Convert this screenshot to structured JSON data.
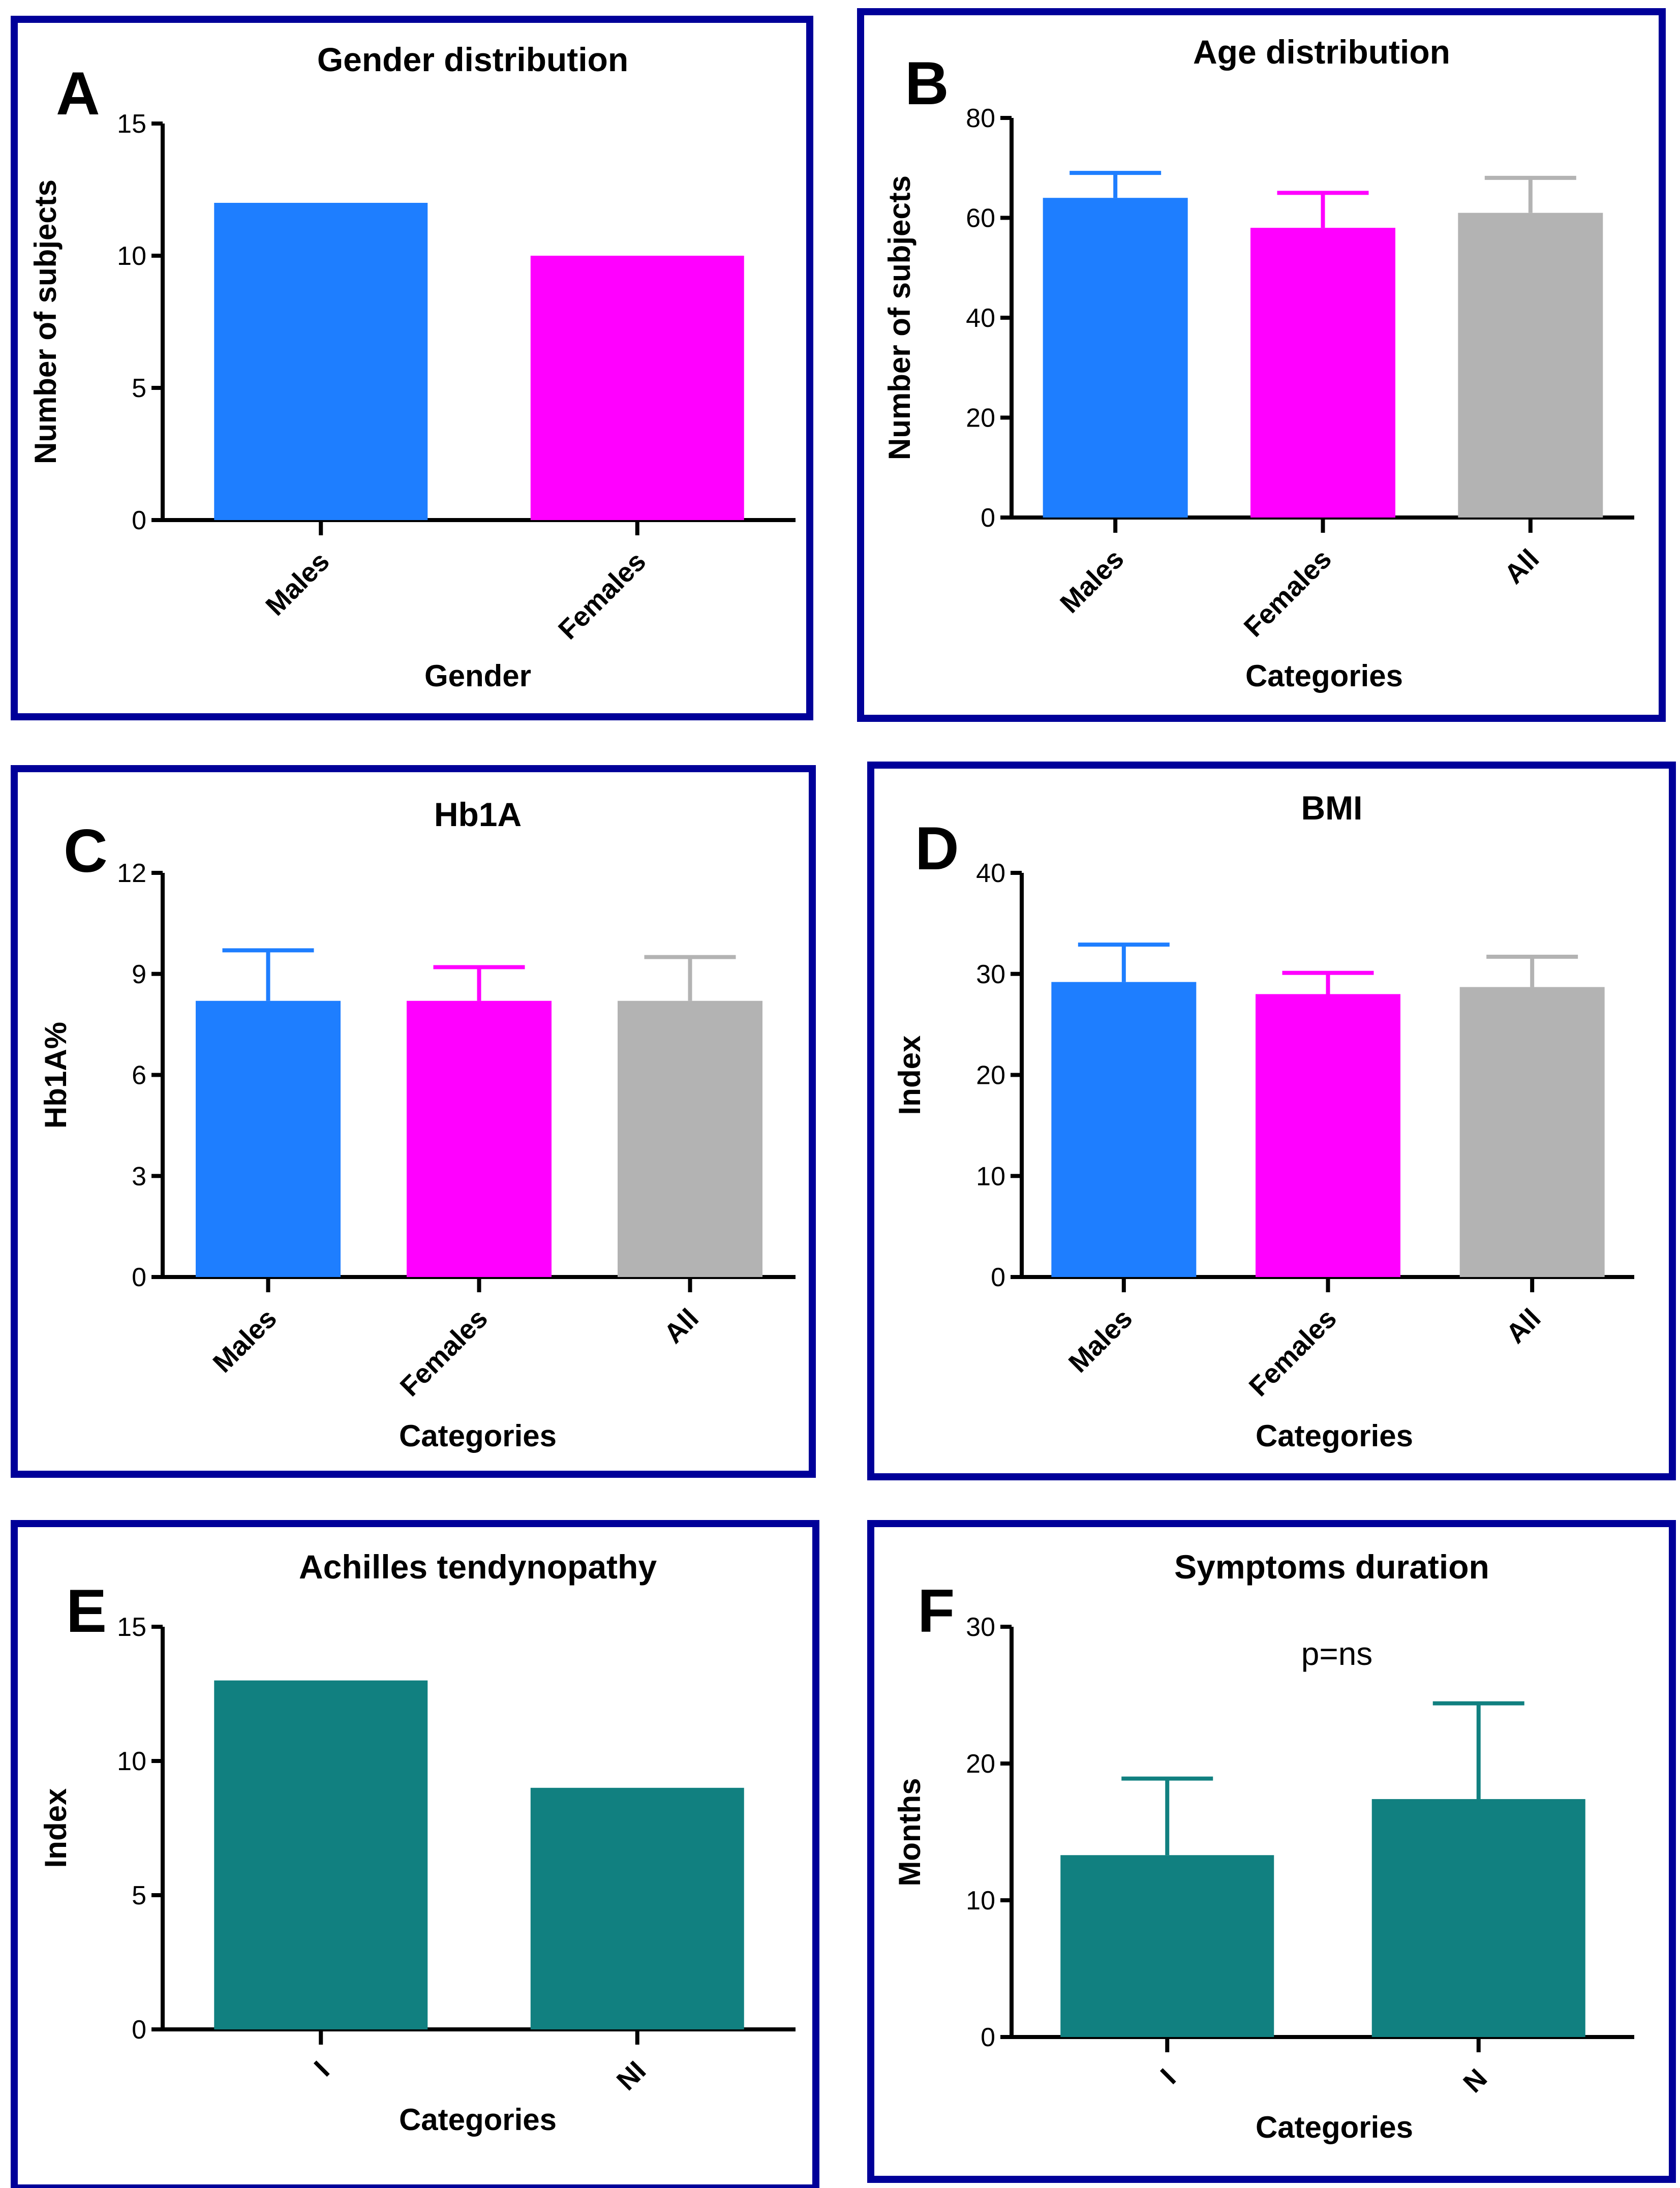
{
  "panels": [
    {
      "letter": "A",
      "title": "Gender distribution",
      "xlabel": "Gender",
      "ylabel": "Number of subjects",
      "yticks": [
        "0",
        "5",
        "10",
        "15"
      ],
      "ylim": [
        0,
        15
      ],
      "categories": [
        "Males",
        "Females"
      ],
      "values": [
        12,
        10
      ],
      "errors": null,
      "bar_colors": [
        "#1E7EFF",
        "#FF00FF"
      ]
    },
    {
      "letter": "B",
      "title": "Age distribution",
      "xlabel": "Categories",
      "ylabel": "Number of subjects",
      "yticks": [
        "0",
        "20",
        "40",
        "60",
        "80"
      ],
      "ylim": [
        0,
        80
      ],
      "categories": [
        "Males",
        "Females",
        "All"
      ],
      "values": [
        64,
        58,
        61
      ],
      "errors": [
        5,
        7,
        7
      ],
      "bar_colors": [
        "#1E7EFF",
        "#FF00FF",
        "#B3B3B3"
      ]
    },
    {
      "letter": "C",
      "title": "Hb1A",
      "xlabel": "Categories",
      "ylabel": "Hb1A%",
      "yticks": [
        "0",
        "3",
        "6",
        "9",
        "12"
      ],
      "ylim": [
        0,
        12
      ],
      "categories": [
        "Males",
        "Females",
        "All"
      ],
      "values": [
        8.2,
        8.2,
        8.2
      ],
      "errors": [
        1.5,
        1.0,
        1.3
      ],
      "bar_colors": [
        "#1E7EFF",
        "#FF00FF",
        "#B3B3B3"
      ]
    },
    {
      "letter": "D",
      "title": "BMI",
      "xlabel": "Categories",
      "ylabel": "Index",
      "yticks": [
        "0",
        "10",
        "20",
        "30",
        "40"
      ],
      "ylim": [
        0,
        40
      ],
      "categories": [
        "Males",
        "Females",
        "All"
      ],
      "values": [
        29.2,
        28.0,
        28.7
      ],
      "errors": [
        3.7,
        2.1,
        3.0
      ],
      "bar_colors": [
        "#1E7EFF",
        "#FF00FF",
        "#B3B3B3"
      ]
    },
    {
      "letter": "E",
      "title": "Achilles tendynopathy",
      "xlabel": "Categories",
      "ylabel": "Index",
      "yticks": [
        "0",
        "5",
        "10",
        "15"
      ],
      "ylim": [
        0,
        15
      ],
      "categories": [
        "I",
        "NI"
      ],
      "values": [
        13,
        9
      ],
      "errors": null,
      "bar_colors": [
        "#118080",
        "#118080"
      ]
    },
    {
      "letter": "F",
      "title": "Symptoms duration",
      "annotation": "p=ns",
      "xlabel": "Categories",
      "ylabel": "Months",
      "yticks": [
        "0",
        "10",
        "20",
        "30"
      ],
      "ylim": [
        0,
        30
      ],
      "categories": [
        "I",
        "N"
      ],
      "values": [
        13.3,
        17.4
      ],
      "errors": [
        5.6,
        7.0
      ],
      "bar_colors": [
        "#118080",
        "#118080"
      ]
    }
  ],
  "colors": {
    "frame": "#000099",
    "axis": "#000000",
    "males": "#1E7EFF",
    "females": "#FF00FF",
    "all": "#B3B3B3",
    "teal": "#118080"
  },
  "chart_data": [
    {
      "type": "bar",
      "title": "Gender distribution",
      "xlabel": "Gender",
      "ylabel": "Number of subjects",
      "categories": [
        "Males",
        "Females"
      ],
      "values": [
        12,
        10
      ],
      "ylim": [
        0,
        15
      ],
      "grid": false
    },
    {
      "type": "bar",
      "title": "Age distribution",
      "xlabel": "Categories",
      "ylabel": "Number of subjects",
      "categories": [
        "Males",
        "Females",
        "All"
      ],
      "values": [
        64,
        58,
        61
      ],
      "errors": [
        5,
        7,
        7
      ],
      "ylim": [
        0,
        80
      ],
      "grid": false
    },
    {
      "type": "bar",
      "title": "Hb1A",
      "xlabel": "Categories",
      "ylabel": "Hb1A%",
      "categories": [
        "Males",
        "Females",
        "All"
      ],
      "values": [
        8.2,
        8.2,
        8.2
      ],
      "errors": [
        1.5,
        1.0,
        1.3
      ],
      "ylim": [
        0,
        12
      ],
      "grid": false
    },
    {
      "type": "bar",
      "title": "BMI",
      "xlabel": "Categories",
      "ylabel": "Index",
      "categories": [
        "Males",
        "Females",
        "All"
      ],
      "values": [
        29.2,
        28.0,
        28.7
      ],
      "errors": [
        3.7,
        2.1,
        3.0
      ],
      "ylim": [
        0,
        40
      ],
      "grid": false
    },
    {
      "type": "bar",
      "title": "Achilles tendynopathy",
      "xlabel": "Categories",
      "ylabel": "Index",
      "categories": [
        "I",
        "NI"
      ],
      "values": [
        13,
        9
      ],
      "ylim": [
        0,
        15
      ],
      "grid": false
    },
    {
      "type": "bar",
      "title": "Symptoms duration",
      "annotation": "p=ns",
      "xlabel": "Categories",
      "ylabel": "Months",
      "categories": [
        "I",
        "N"
      ],
      "values": [
        13.3,
        17.4
      ],
      "errors": [
        5.6,
        7.0
      ],
      "ylim": [
        0,
        30
      ],
      "grid": false
    }
  ]
}
